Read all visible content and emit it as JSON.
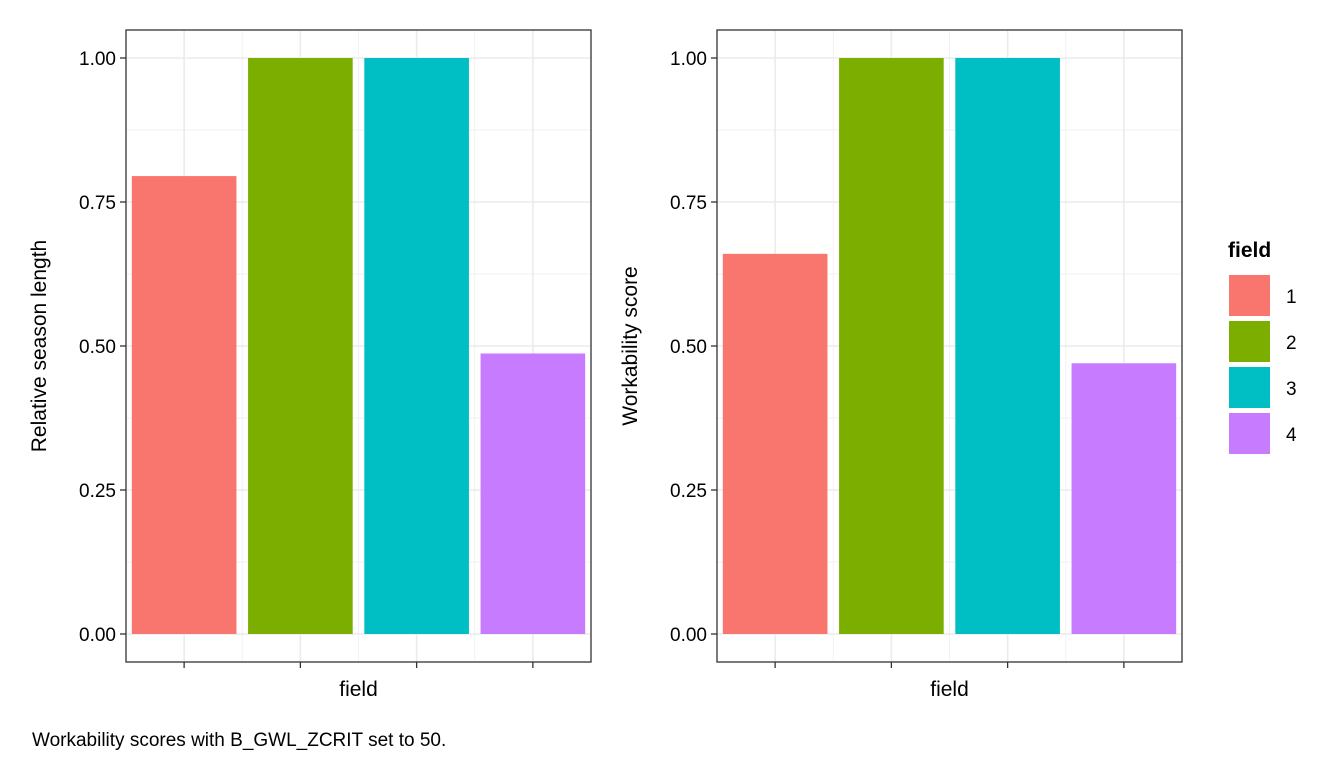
{
  "chart_data": [
    {
      "type": "bar",
      "categories": [
        "1",
        "2",
        "3",
        "4"
      ],
      "values": [
        0.795,
        1.0,
        1.0,
        0.487
      ],
      "title": "",
      "xlabel": "field",
      "ylabel": "Relative season length",
      "ylim": [
        0,
        1.0
      ],
      "yticks": [
        "0.00",
        "0.25",
        "0.50",
        "0.75",
        "1.00"
      ],
      "grid": true
    },
    {
      "type": "bar",
      "categories": [
        "1",
        "2",
        "3",
        "4"
      ],
      "values": [
        0.66,
        1.0,
        1.0,
        0.47
      ],
      "title": "",
      "xlabel": "field",
      "ylabel": "Workability score",
      "ylim": [
        0,
        1.0
      ],
      "yticks": [
        "0.00",
        "0.25",
        "0.50",
        "0.75",
        "1.00"
      ],
      "grid": true
    }
  ],
  "legend": {
    "title": "field",
    "placement": "right",
    "items": [
      {
        "label": "1",
        "color": "#F8766D"
      },
      {
        "label": "2",
        "color": "#7CAE00"
      },
      {
        "label": "3",
        "color": "#00BFC4"
      },
      {
        "label": "4",
        "color": "#C77CFF"
      }
    ]
  },
  "caption": "Workability scores with B_GWL_ZCRIT set to 50."
}
